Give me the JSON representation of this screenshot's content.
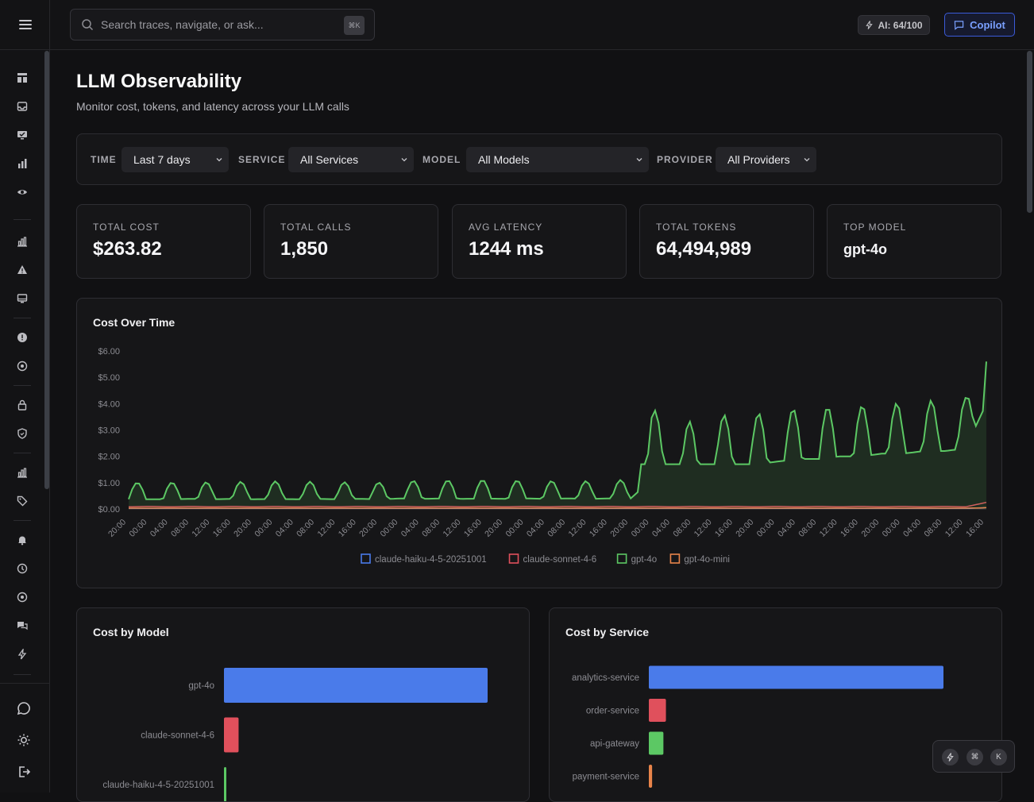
{
  "topbar": {
    "search_placeholder": "Search traces, navigate, or ask...",
    "search_shortcut": "⌘K",
    "ai_label": "AI: 64/100",
    "copilot_label": "Copilot"
  },
  "page": {
    "title": "LLM Observability",
    "subtitle": "Monitor cost, tokens, and latency across your LLM calls"
  },
  "filters": {
    "time": {
      "label": "TIME",
      "value": "Last 7 days"
    },
    "service": {
      "label": "SERVICE",
      "value": "All Services"
    },
    "model": {
      "label": "MODEL",
      "value": "All Models"
    },
    "provider": {
      "label": "PROVIDER",
      "value": "All Providers"
    }
  },
  "stats": [
    {
      "label": "TOTAL COST",
      "value": "$263.82"
    },
    {
      "label": "TOTAL CALLS",
      "value": "1,850"
    },
    {
      "label": "AVG LATENCY",
      "value": "1244 ms"
    },
    {
      "label": "TOTAL TOKENS",
      "value": "64,494,989"
    },
    {
      "label": "TOP MODEL",
      "value": "gpt-4o"
    }
  ],
  "chart_data": [
    {
      "type": "area",
      "title": "Cost Over Time",
      "ylim": [
        0,
        6
      ],
      "yticks": [
        "$0.00",
        "$1.00",
        "$2.00",
        "$3.00",
        "$4.00",
        "$5.00",
        "$6.00"
      ],
      "xticks": [
        "20:00",
        "00:00",
        "04:00",
        "08:00",
        "12:00",
        "16:00",
        "20:00",
        "00:00",
        "04:00",
        "08:00",
        "12:00",
        "16:00",
        "20:00",
        "00:00",
        "04:00",
        "08:00",
        "12:00",
        "16:00",
        "20:00",
        "00:00",
        "04:00",
        "08:00",
        "12:00",
        "16:00",
        "20:00",
        "00:00",
        "04:00",
        "08:00",
        "12:00",
        "16:00",
        "20:00",
        "00:00",
        "04:00",
        "08:00",
        "12:00",
        "16:00",
        "20:00",
        "00:00",
        "04:00",
        "08:00",
        "12:00",
        "16:00"
      ],
      "legend_position": "bottom",
      "series": [
        {
          "name": "claude-haiku-4-5-20251001",
          "color": "#4a7bea",
          "values": [
            0.02,
            0.02,
            0.02,
            0.02,
            0.02,
            0.02,
            0.02,
            0.02,
            0.02,
            0.02,
            0.02,
            0.02,
            0.02,
            0.02,
            0.02,
            0.02,
            0.02,
            0.02,
            0.02,
            0.02,
            0.02,
            0.02,
            0.02,
            0.02,
            0.02,
            0.02,
            0.02,
            0.02,
            0.02,
            0.02,
            0.02,
            0.02,
            0.02,
            0.02,
            0.02,
            0.02,
            0.02,
            0.02,
            0.02,
            0.02,
            0.02,
            0.05
          ]
        },
        {
          "name": "claude-sonnet-4-6",
          "color": "#e0505c",
          "values": [
            0.08,
            0.1,
            0.08,
            0.1,
            0.08,
            0.1,
            0.08,
            0.1,
            0.08,
            0.1,
            0.08,
            0.1,
            0.08,
            0.1,
            0.08,
            0.1,
            0.08,
            0.1,
            0.08,
            0.1,
            0.08,
            0.1,
            0.08,
            0.1,
            0.08,
            0.1,
            0.08,
            0.1,
            0.08,
            0.1,
            0.08,
            0.1,
            0.08,
            0.1,
            0.08,
            0.1,
            0.08,
            0.1,
            0.08,
            0.1,
            0.08,
            0.25
          ]
        },
        {
          "name": "gpt-4o",
          "color": "#5cc864",
          "values": [
            1.0,
            1.0,
            1.0,
            1.05,
            1.0,
            1.05,
            1.0,
            1.05,
            1.0,
            1.05,
            1.0,
            1.05,
            1.0,
            1.1,
            1.05,
            1.1,
            1.05,
            1.1,
            1.05,
            1.1,
            1.05,
            1.1,
            1.05,
            1.1,
            1.1,
            3.5,
            3.0,
            3.0,
            3.2,
            3.3,
            3.3,
            3.4,
            3.5,
            3.5,
            3.6,
            3.6,
            3.7,
            3.7,
            3.8,
            3.8,
            3.9,
            5.6
          ]
        },
        {
          "name": "gpt-4o-mini",
          "color": "#e8844a",
          "values": [
            0.03,
            0.03,
            0.03,
            0.03,
            0.03,
            0.03,
            0.03,
            0.03,
            0.03,
            0.03,
            0.03,
            0.03,
            0.03,
            0.03,
            0.03,
            0.03,
            0.03,
            0.03,
            0.03,
            0.03,
            0.03,
            0.03,
            0.03,
            0.03,
            0.03,
            0.03,
            0.03,
            0.03,
            0.03,
            0.03,
            0.03,
            0.03,
            0.03,
            0.03,
            0.03,
            0.03,
            0.03,
            0.03,
            0.03,
            0.03,
            0.03,
            0.05
          ]
        }
      ]
    },
    {
      "type": "bar",
      "title": "Cost by Model",
      "orientation": "horizontal",
      "categories": [
        "gpt-4o",
        "claude-sonnet-4-6",
        "claude-haiku-4-5-20251001"
      ],
      "values": [
        248.5,
        13.8,
        1.3
      ],
      "colors": [
        "#4a7bea",
        "#e0505c",
        "#5cc864"
      ]
    },
    {
      "type": "bar",
      "title": "Cost by Service",
      "orientation": "horizontal",
      "categories": [
        "analytics-service",
        "order-service",
        "api-gateway",
        "payment-service"
      ],
      "values": [
        198.0,
        11.5,
        9.8,
        2.2
      ],
      "colors": [
        "#4a7bea",
        "#e0505c",
        "#5cc864",
        "#e8844a"
      ]
    }
  ],
  "floating": {
    "shortcut_cmd": "⌘",
    "shortcut_k": "K"
  }
}
